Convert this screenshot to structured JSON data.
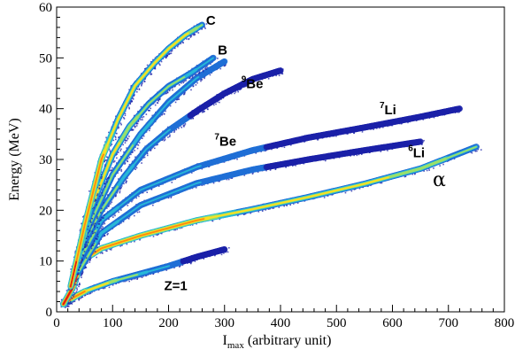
{
  "chart_data": {
    "type": "scatter",
    "title": "",
    "xlabel_main": "I",
    "xlabel_sub": "max",
    "xlabel_rest": " (arbitrary unit)",
    "ylabel": "Energy (MeV)",
    "xlim": [
      0,
      800
    ],
    "ylim": [
      0,
      60
    ],
    "xticks": [
      0,
      100,
      200,
      300,
      400,
      500,
      600,
      700,
      800
    ],
    "yticks": [
      0,
      10,
      20,
      30,
      40,
      50,
      60
    ],
    "colormap": [
      "#1a20a8",
      "#1f6fd6",
      "#28b8d8",
      "#9be06a",
      "#ffe020",
      "#ff8a10",
      "#e41a10"
    ],
    "species": [
      {
        "label": "Z=1",
        "mass": "",
        "x": 192,
        "y": 4.3,
        "color": "#1f6fd6",
        "ridge": [
          [
            12,
            1.5
          ],
          [
            25,
            2.5
          ],
          [
            50,
            4.0
          ],
          [
            100,
            6.0
          ],
          [
            150,
            7.5
          ],
          [
            200,
            9.0
          ],
          [
            250,
            10.8
          ],
          [
            300,
            12.3
          ]
        ],
        "intensity": [
          0.95,
          0.9,
          0.75,
          0.55,
          0.4,
          0.3,
          0.18,
          0.1
        ]
      },
      {
        "label": "α",
        "mass": "",
        "x": 672,
        "y": 24.8,
        "color": "#e41a10",
        "ridge": [
          [
            12,
            1.5
          ],
          [
            30,
            5
          ],
          [
            45,
            10
          ],
          [
            80,
            12.5
          ],
          [
            150,
            15.0
          ],
          [
            250,
            18.0
          ],
          [
            350,
            20.2
          ],
          [
            450,
            22.6
          ],
          [
            550,
            25.2
          ],
          [
            650,
            28.2
          ],
          [
            750,
            32.5
          ]
        ],
        "intensity": [
          1.0,
          0.95,
          0.9,
          0.85,
          0.8,
          0.75,
          0.7,
          0.65,
          0.6,
          0.55,
          0.5
        ]
      },
      {
        "label": "Li",
        "mass": "6",
        "x": 628,
        "y": 30.4,
        "color": "#1a20a8",
        "ridge": [
          [
            40,
            8
          ],
          [
            80,
            15.5
          ],
          [
            150,
            21
          ],
          [
            250,
            25.3
          ],
          [
            350,
            28.0
          ],
          [
            450,
            30.0
          ],
          [
            550,
            31.8
          ],
          [
            650,
            33.5
          ]
        ],
        "intensity": [
          0.45,
          0.4,
          0.35,
          0.3,
          0.25,
          0.2,
          0.15,
          0.1
        ]
      },
      {
        "label": "Li",
        "mass": "7",
        "x": 577,
        "y": 38.9,
        "color": "#1a20a8",
        "ridge": [
          [
            45,
            11
          ],
          [
            80,
            18
          ],
          [
            150,
            24
          ],
          [
            250,
            28.5
          ],
          [
            350,
            31.8
          ],
          [
            450,
            34.3
          ],
          [
            550,
            36.3
          ],
          [
            650,
            38.4
          ],
          [
            720,
            40
          ]
        ],
        "intensity": [
          0.45,
          0.4,
          0.35,
          0.3,
          0.25,
          0.2,
          0.15,
          0.1,
          0.08
        ]
      },
      {
        "label": "Be",
        "mass": "7",
        "x": 282,
        "y": 32.7,
        "color": "#1f6fd6",
        "ridge": [
          [
            45,
            13
          ],
          [
            80,
            20
          ],
          [
            120,
            26.5
          ],
          [
            160,
            32
          ],
          [
            200,
            35.7
          ],
          [
            250,
            39.5
          ],
          [
            300,
            43.0
          ],
          [
            350,
            45.8
          ],
          [
            400,
            47.5
          ]
        ],
        "intensity": [
          0.5,
          0.45,
          0.4,
          0.35,
          0.3,
          0.22,
          0.15,
          0.1,
          0.06
        ]
      },
      {
        "label": "Be",
        "mass": "9",
        "x": 330,
        "y": 44.0,
        "color": "#1a20a8",
        "ridge": [
          [
            50,
            15
          ],
          [
            100,
            27
          ],
          [
            150,
            35
          ],
          [
            200,
            41.3
          ],
          [
            250,
            46.0
          ],
          [
            300,
            49.3
          ]
        ],
        "intensity": [
          0.5,
          0.45,
          0.4,
          0.35,
          0.3,
          0.25
        ]
      },
      {
        "label": "B",
        "mass": "",
        "x": 288,
        "y": 50.7,
        "color": "#1f6fd6",
        "ridge": [
          [
            30,
            7
          ],
          [
            60,
            20
          ],
          [
            100,
            31
          ],
          [
            130,
            36.5
          ],
          [
            165,
            41.0
          ],
          [
            200,
            44.4
          ],
          [
            240,
            47.0
          ],
          [
            280,
            50.0
          ]
        ],
        "intensity": [
          0.8,
          0.7,
          0.6,
          0.55,
          0.5,
          0.45,
          0.4,
          0.3
        ]
      },
      {
        "label": "C",
        "mass": "",
        "x": 267,
        "y": 56.5,
        "color": "#28b8d8",
        "ridge": [
          [
            25,
            5
          ],
          [
            50,
            17
          ],
          [
            80,
            30
          ],
          [
            110,
            38
          ],
          [
            140,
            44.5
          ],
          [
            175,
            49
          ],
          [
            200,
            51.8
          ],
          [
            230,
            54.5
          ],
          [
            260,
            56.5
          ]
        ],
        "intensity": [
          0.95,
          0.85,
          0.75,
          0.7,
          0.65,
          0.6,
          0.7,
          0.6,
          0.5
        ]
      }
    ]
  }
}
